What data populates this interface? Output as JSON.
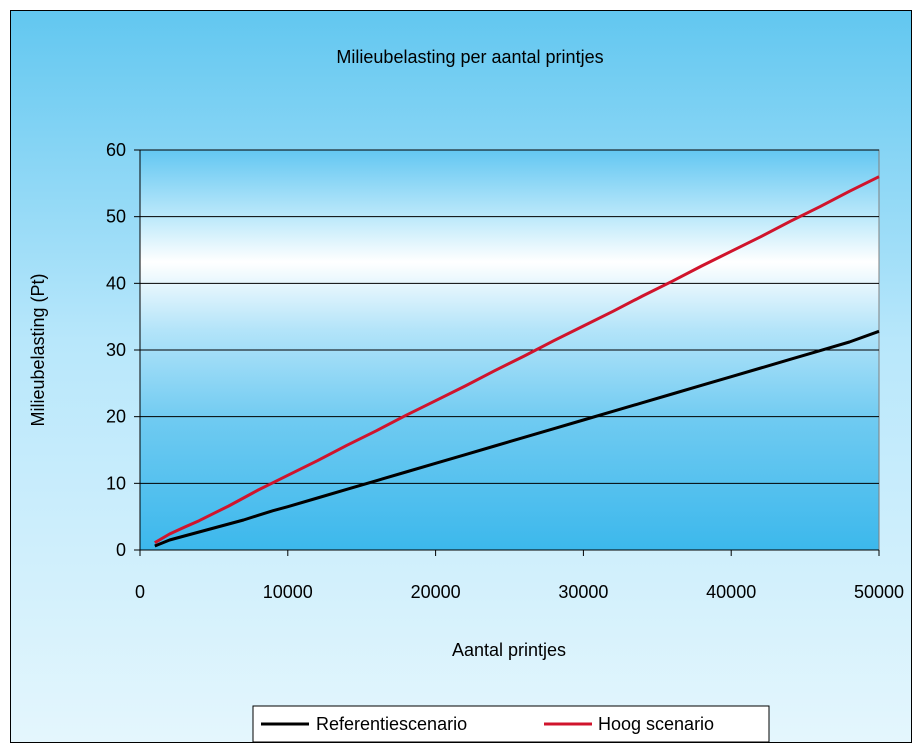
{
  "chart_data": {
    "type": "line",
    "title": "Milieubelasting per aantal printjes",
    "xlabel": "Aantal printjes",
    "ylabel": "Milieubelasting (Pt)",
    "xlim": [
      0,
      50000
    ],
    "ylim": [
      0,
      60
    ],
    "xticks": [
      0,
      10000,
      20000,
      30000,
      40000,
      50000
    ],
    "yticks": [
      0,
      10,
      20,
      30,
      40,
      50,
      60
    ],
    "grid": true,
    "legend_position": "bottom",
    "series": [
      {
        "name": "Referentiescenario",
        "color": "#000000",
        "x": [
          1000,
          2000,
          3000,
          4000,
          5000,
          6000,
          7000,
          8000,
          9000,
          10000,
          12000,
          14000,
          16000,
          18000,
          20000,
          22000,
          24000,
          26000,
          28000,
          30000,
          32000,
          34000,
          36000,
          38000,
          40000,
          42000,
          44000,
          46000,
          48000,
          50000
        ],
        "y": [
          0.6,
          1.5,
          2.1,
          2.7,
          3.3,
          3.9,
          4.5,
          5.2,
          5.9,
          6.5,
          7.8,
          9.1,
          10.4,
          11.7,
          13.0,
          14.3,
          15.6,
          16.9,
          18.2,
          19.5,
          20.8,
          22.1,
          23.4,
          24.7,
          26.0,
          27.3,
          28.6,
          29.9,
          31.2,
          32.8
        ]
      },
      {
        "name": "Hoog scenario",
        "color": "#d0142c",
        "x": [
          1000,
          2000,
          3000,
          4000,
          5000,
          6000,
          7000,
          8000,
          9000,
          10000,
          12000,
          14000,
          16000,
          18000,
          20000,
          22000,
          24000,
          26000,
          28000,
          30000,
          32000,
          34000,
          36000,
          38000,
          40000,
          42000,
          44000,
          46000,
          48000,
          50000
        ],
        "y": [
          1.1,
          2.4,
          3.4,
          4.4,
          5.5,
          6.6,
          7.8,
          9.0,
          10.1,
          11.2,
          13.4,
          15.7,
          17.9,
          20.2,
          22.4,
          24.6,
          26.9,
          29.1,
          31.4,
          33.6,
          35.8,
          38.1,
          40.3,
          42.6,
          44.8,
          47.0,
          49.3,
          51.5,
          53.8,
          56.0
        ]
      }
    ]
  }
}
